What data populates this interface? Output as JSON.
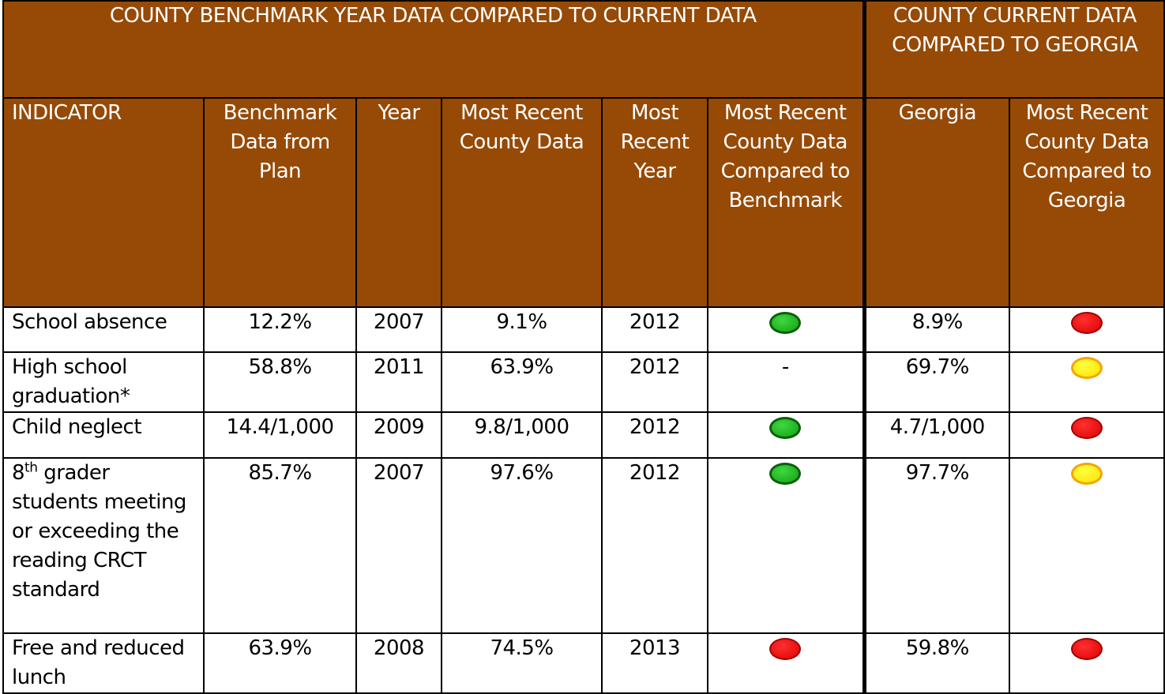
{
  "table": {
    "group_headers": [
      "COUNTY BENCHMARK YEAR DATA COMPARED TO CURRENT DATA",
      "COUNTY CURRENT DATA COMPARED TO GEORGIA"
    ],
    "columns": [
      "INDICATOR",
      "Benchmark Data from Plan",
      "Year",
      "Most Recent County Data",
      "Most Recent Year",
      "Most Recent County Data Compared to Benchmark",
      "Georgia",
      "Most Recent County Data Compared to Georgia"
    ],
    "rows": [
      {
        "indicator": "School absence",
        "benchmark": "12.2%",
        "year": "2007",
        "recent": "9.1%",
        "recent_year": "2012",
        "benchmark_status": {
          "color": "green"
        },
        "georgia": "8.9%",
        "georgia_status": {
          "color": "red"
        }
      },
      {
        "indicator": "High school graduation*",
        "benchmark": "58.8%",
        "year": "2011",
        "recent": "63.9%",
        "recent_year": "2012",
        "benchmark_status": {
          "text": "-"
        },
        "georgia": "69.7%",
        "georgia_status": {
          "color": "yellow"
        }
      },
      {
        "indicator": "Child neglect",
        "benchmark": "14.4/1,000",
        "year": "2009",
        "recent": "9.8/1,000",
        "recent_year": "2012",
        "benchmark_status": {
          "color": "green"
        },
        "georgia": "4.7/1,000",
        "georgia_status": {
          "color": "red"
        }
      },
      {
        "indicator": {
          "text": "8",
          "sup": "th",
          "rest": " grader students meeting or exceeding the reading CRCT standard"
        },
        "benchmark": "85.7%",
        "year": "2007",
        "recent": "97.6%",
        "recent_year": "2012",
        "benchmark_status": {
          "color": "green"
        },
        "georgia": "97.7%",
        "georgia_status": {
          "color": "yellow"
        }
      },
      {
        "indicator": "Free and reduced lunch",
        "benchmark": "63.9%",
        "year": "2008",
        "recent": "74.5%",
        "recent_year": "2013",
        "benchmark_status": {
          "color": "red"
        },
        "georgia": "59.8%",
        "georgia_status": {
          "color": "red"
        }
      }
    ]
  }
}
